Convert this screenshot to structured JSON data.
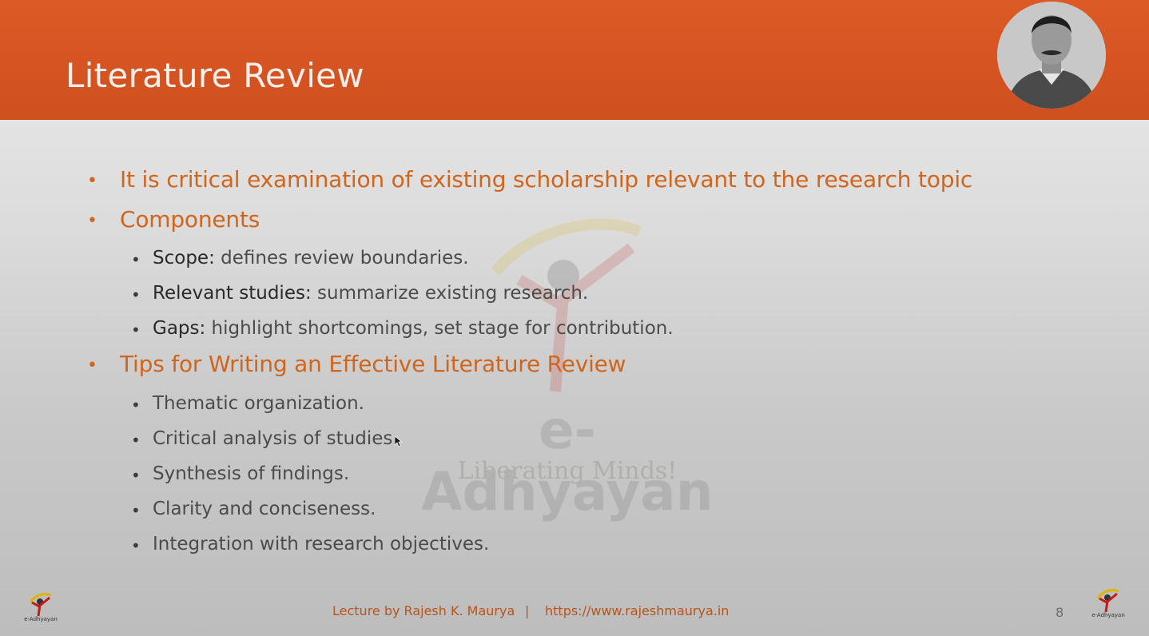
{
  "slide": {
    "title": "Literature Review",
    "page_number": "8"
  },
  "bullets": [
    {
      "text": "It is critical examination of existing scholarship relevant to the research topic"
    },
    {
      "text": "Components",
      "items": [
        {
          "term": "Scope:",
          "desc": " defines review boundaries."
        },
        {
          "term": "Relevant studies:",
          "desc": " summarize existing research."
        },
        {
          "term": "Gaps:",
          "desc": " highlight shortcomings, set stage for contribution."
        }
      ]
    },
    {
      "text": "Tips for Writing an Effective Literature Review",
      "items": [
        {
          "text": "Thematic organization."
        },
        {
          "text": "Critical analysis of studies."
        },
        {
          "text": "Synthesis of findings."
        },
        {
          "text": "Clarity and conciseness."
        },
        {
          "text": "Integration with research objectives."
        }
      ]
    }
  ],
  "watermark": {
    "name": "e-Adhyayan",
    "tagline": "Liberating Minds!"
  },
  "footer": {
    "byline": "Lecture by Rajesh K. Maurya",
    "separator": "|",
    "url": "https://www.rajeshmaurya.in"
  },
  "logo": {
    "caption": "e-Adhyayan"
  },
  "colors": {
    "header": "#d5521f",
    "accent": "#d0651c",
    "body_text": "#4b4b4b"
  }
}
